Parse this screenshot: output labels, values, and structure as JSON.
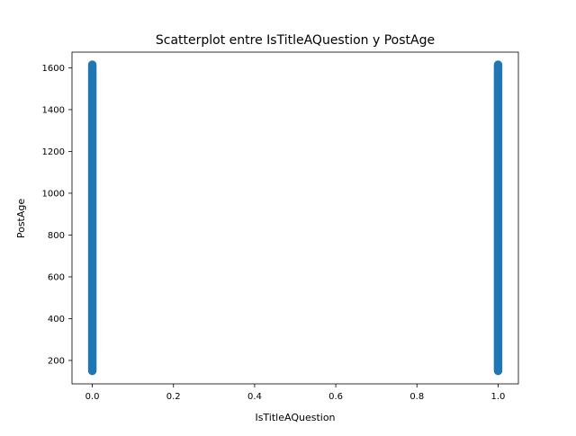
{
  "chart_data": {
    "type": "scatter",
    "title": "Scatterplot entre IsTitleAQuestion y PostAge",
    "xlabel": "IsTitleAQuestion",
    "ylabel": "PostAge",
    "xlim": [
      -0.05,
      1.05
    ],
    "ylim": [
      88,
      1675
    ],
    "xticks": [
      0.0,
      0.2,
      0.4,
      0.6,
      0.8,
      1.0
    ],
    "xtick_labels": [
      "0.0",
      "0.2",
      "0.4",
      "0.6",
      "0.8",
      "1.0"
    ],
    "yticks": [
      200,
      400,
      600,
      800,
      1000,
      1200,
      1400,
      1600
    ],
    "ytick_labels": [
      "200",
      "400",
      "600",
      "800",
      "1000",
      "1200",
      "1400",
      "1600"
    ],
    "grid": false,
    "marker_color": "#1f77b4",
    "series": [
      {
        "x_value": 0,
        "y_min": 150,
        "y_max": 1615
      },
      {
        "x_value": 1,
        "y_min": 150,
        "y_max": 1615
      }
    ]
  }
}
